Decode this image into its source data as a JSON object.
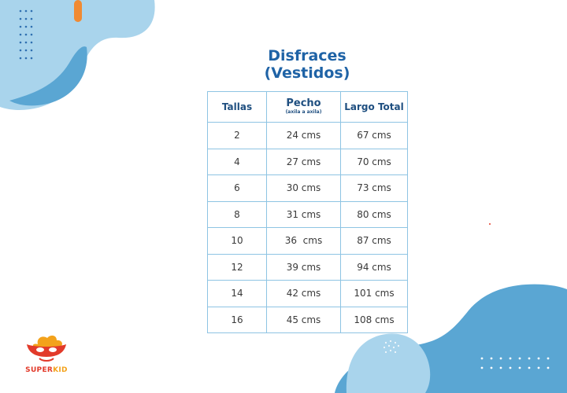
{
  "title": {
    "line1": "Disfraces",
    "line2": "(Vestidos)"
  },
  "table": {
    "headers": {
      "size": "Tallas",
      "chest": "Pecho",
      "chest_note": "(axila a axila)",
      "length": "Largo Total"
    },
    "rows": [
      {
        "size": "2",
        "chest": "24 cms",
        "length": "67 cms"
      },
      {
        "size": "4",
        "chest": "27 cms",
        "length": "70 cms"
      },
      {
        "size": "6",
        "chest": "30 cms",
        "length": "73 cms"
      },
      {
        "size": "8",
        "chest": "31 cms",
        "length": "80 cms"
      },
      {
        "size": "10",
        "chest": "36  cms",
        "length": "87 cms"
      },
      {
        "size": "12",
        "chest": "39 cms",
        "length": "94 cms"
      },
      {
        "size": "14",
        "chest": "42 cms",
        "length": "101 cms"
      },
      {
        "size": "16",
        "chest": "45 cms",
        "length": "108 cms"
      }
    ]
  },
  "brand": {
    "part1": "SUPER",
    "part2": "KID"
  },
  "colors": {
    "title": "#1f63a6",
    "blob_light": "#a9d4ec",
    "blob_dark": "#5aa6d3",
    "accent_orange": "#f08a33",
    "table_border": "#8ec4e3",
    "brand_red": "#e23a2a",
    "brand_yellow": "#f3a21b"
  }
}
